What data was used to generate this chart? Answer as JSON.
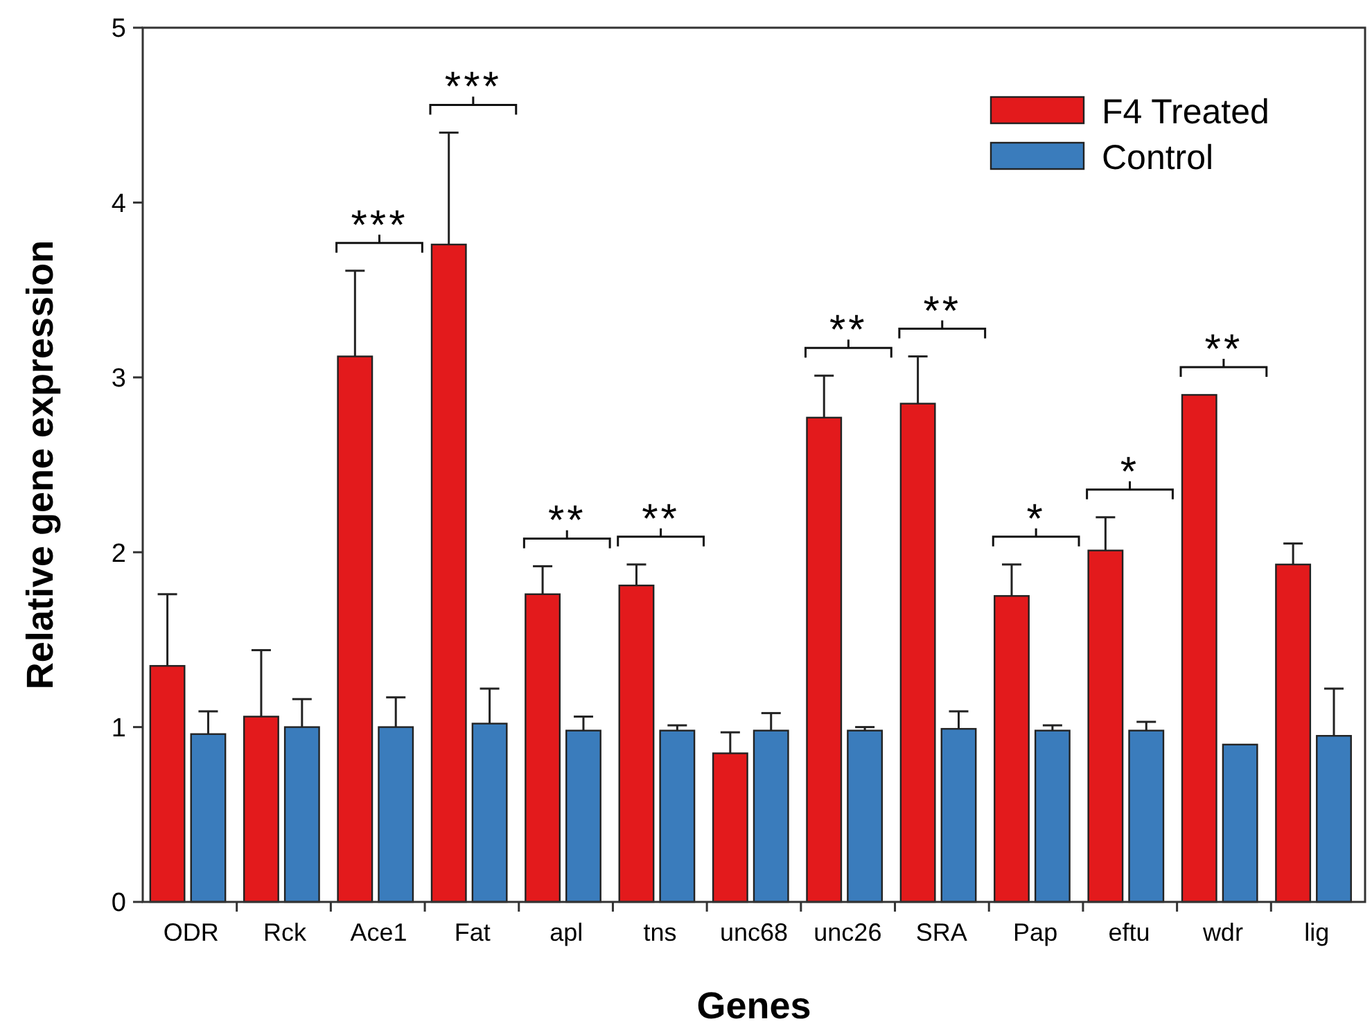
{
  "chart_data": {
    "type": "bar",
    "xlabel": "Genes",
    "ylabel": "Relative gene expression",
    "categories": [
      "ODR",
      "Rck",
      "Ace1",
      "Fat",
      "apl",
      "tns",
      "unc68",
      "unc26",
      "SRA",
      "Pap",
      "eftu",
      "wdr",
      "lig"
    ],
    "series": [
      {
        "name": "F4 Treated",
        "color": "#e31a1c",
        "values": [
          1.35,
          1.06,
          3.12,
          3.76,
          1.76,
          1.81,
          0.85,
          2.77,
          2.85,
          1.75,
          2.01,
          2.9,
          1.93
        ],
        "errors": [
          0.41,
          0.38,
          0.49,
          0.64,
          0.16,
          0.12,
          0.12,
          0.24,
          0.27,
          0.18,
          0.19,
          null,
          0.12
        ]
      },
      {
        "name": "Control",
        "color": "#3a7cbc",
        "values": [
          0.96,
          1.0,
          1.0,
          1.02,
          0.98,
          0.98,
          0.98,
          0.98,
          0.99,
          0.98,
          0.98,
          0.9,
          0.95
        ],
        "errors": [
          0.13,
          0.16,
          0.17,
          0.2,
          0.08,
          0.03,
          0.1,
          0.02,
          0.1,
          0.03,
          0.05,
          null,
          0.27
        ]
      }
    ],
    "ylim": [
      0,
      5
    ],
    "yticks": [
      0,
      1,
      2,
      3,
      4,
      5
    ],
    "grid": false,
    "legend": "top right",
    "annotations": [
      "***",
      "***",
      "**",
      "**",
      "**",
      "**",
      "*",
      "*",
      "**"
    ]
  }
}
